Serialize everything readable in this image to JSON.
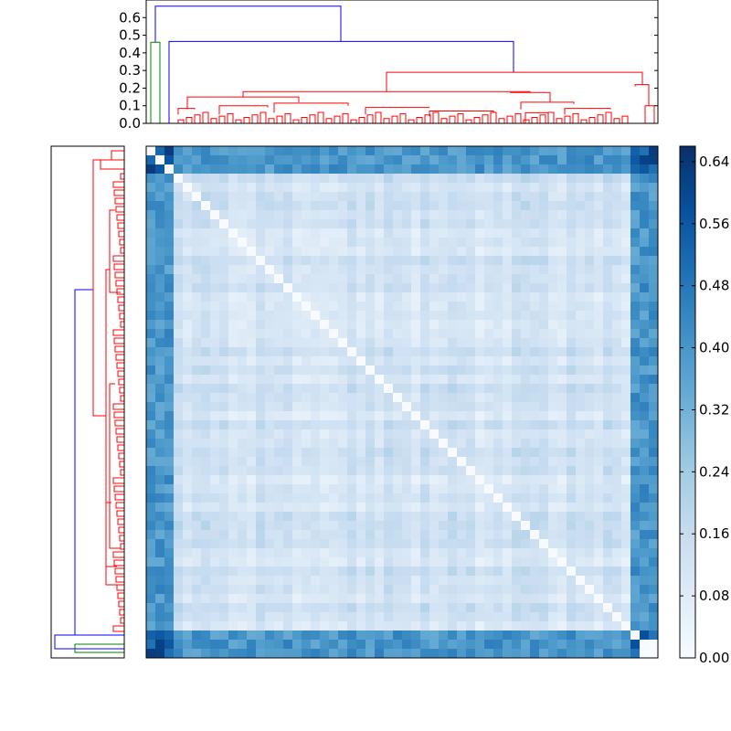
{
  "chart_data": [
    {
      "type": "dendrogram",
      "orientation": "top",
      "ylim": [
        0.0,
        0.7
      ],
      "yticks": [
        "0.0",
        "0.1",
        "0.2",
        "0.3",
        "0.4",
        "0.5",
        "0.6"
      ],
      "grid": false,
      "colors": {
        "root_links": "#0000ff",
        "small_cluster": "#008000",
        "main_cluster": "#ff0000"
      },
      "merge_heights": {
        "root": 0.665,
        "second": 0.465,
        "small_cluster": 0.46,
        "main_cluster_top": 0.29
      }
    },
    {
      "type": "dendrogram",
      "orientation": "left",
      "grid": false,
      "colors": {
        "root_links": "#0000ff",
        "small_cluster": "#008000",
        "main_cluster": "#ff0000"
      }
    },
    {
      "type": "heatmap",
      "rows": 56,
      "cols": 56,
      "colormap": "Blues",
      "vmin": 0.0,
      "vmax": 0.66,
      "diagonal": 0.0,
      "blocks": [
        {
          "name": "outlier-block",
          "value_to_rest": 0.42,
          "internal": 0.64
        },
        {
          "name": "main-block",
          "typical": 0.08,
          "range": [
            0.02,
            0.2
          ]
        }
      ]
    },
    {
      "type": "colorbar",
      "ticks": [
        "0.00",
        "0.08",
        "0.16",
        "0.24",
        "0.32",
        "0.40",
        "0.48",
        "0.56",
        "0.64"
      ],
      "tick_values": [
        0.0,
        0.08,
        0.16,
        0.24,
        0.32,
        0.4,
        0.48,
        0.56,
        0.64
      ],
      "range": [
        0.0,
        0.66
      ]
    }
  ]
}
